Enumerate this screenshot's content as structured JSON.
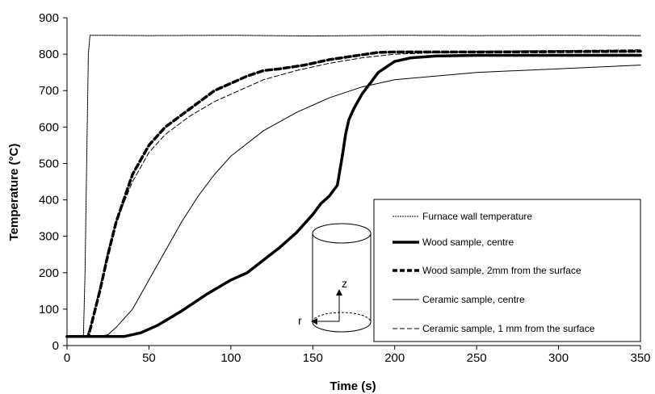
{
  "chart_data": {
    "type": "line",
    "title": "",
    "xlabel": "Time (s)",
    "ylabel": "Temperature (°C)",
    "xlim": [
      0,
      350
    ],
    "ylim": [
      0,
      900
    ],
    "x_ticks": [
      "0",
      "50",
      "100",
      "150",
      "200",
      "250",
      "300",
      "350"
    ],
    "y_ticks": [
      "0",
      "100",
      "200",
      "300",
      "400",
      "500",
      "600",
      "700",
      "800",
      "900"
    ],
    "grid": false,
    "legend_position": "bottom-right",
    "series": [
      {
        "name": "Furnace wall temperature",
        "color": "#000000",
        "style": "dotted-thin",
        "x": [
          0,
          10,
          11,
          12,
          13,
          14,
          20,
          50,
          100,
          150,
          200,
          250,
          300,
          350
        ],
        "y": [
          25,
          25,
          200,
          500,
          800,
          852,
          852,
          851,
          852,
          850,
          852,
          851,
          852,
          851
        ]
      },
      {
        "name": "Wood sample, centre",
        "color": "#000000",
        "style": "solid-thick",
        "x": [
          0,
          35,
          45,
          55,
          70,
          85,
          100,
          110,
          120,
          130,
          140,
          150,
          155,
          160,
          165,
          168,
          170,
          172,
          175,
          180,
          185,
          190,
          200,
          210,
          225,
          250,
          300,
          350
        ],
        "y": [
          25,
          25,
          35,
          55,
          95,
          140,
          180,
          200,
          235,
          270,
          310,
          360,
          390,
          410,
          440,
          520,
          580,
          620,
          650,
          690,
          720,
          750,
          780,
          790,
          795,
          797,
          797,
          797
        ]
      },
      {
        "name": "Wood sample, 2mm from the surface",
        "color": "#000000",
        "style": "dashed-thick",
        "x": [
          0,
          13,
          15,
          20,
          25,
          30,
          40,
          50,
          60,
          75,
          90,
          100,
          110,
          120,
          130,
          145,
          160,
          175,
          190,
          200,
          250,
          300,
          350
        ],
        "y": [
          25,
          25,
          60,
          150,
          250,
          340,
          470,
          550,
          600,
          650,
          700,
          720,
          740,
          755,
          760,
          770,
          785,
          795,
          805,
          806,
          806,
          807,
          808
        ]
      },
      {
        "name": "Ceramic sample, centre",
        "color": "#000000",
        "style": "solid-thin",
        "x": [
          0,
          20,
          25,
          30,
          40,
          50,
          60,
          70,
          80,
          90,
          100,
          120,
          140,
          160,
          180,
          200,
          250,
          300,
          350
        ],
        "y": [
          25,
          25,
          30,
          50,
          100,
          180,
          260,
          340,
          410,
          470,
          520,
          590,
          640,
          680,
          710,
          730,
          750,
          760,
          770
        ]
      },
      {
        "name": "Ceramic sample, 1 mm from the surface",
        "color": "#000000",
        "style": "dashed-thin",
        "x": [
          0,
          12,
          15,
          20,
          25,
          30,
          40,
          50,
          60,
          75,
          90,
          100,
          120,
          140,
          160,
          180,
          200,
          250,
          300,
          350
        ],
        "y": [
          25,
          25,
          60,
          160,
          260,
          340,
          450,
          530,
          580,
          630,
          670,
          690,
          730,
          755,
          775,
          790,
          800,
          808,
          810,
          812
        ]
      }
    ],
    "inset": {
      "label_r": "r",
      "label_z": "z"
    }
  }
}
